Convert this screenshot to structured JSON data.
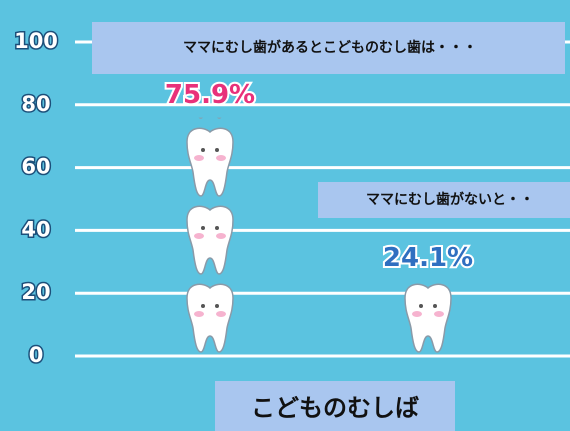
{
  "chart_data": {
    "type": "bar",
    "title": "こどものむしば",
    "categories": [
      "ママにむし歯があるとこどものむし歯は・・・",
      "ママにむし歯がないと・・"
    ],
    "values": [
      75.9,
      24.1
    ],
    "value_labels": [
      "75.9%",
      "24.1%"
    ],
    "value_label_colors": [
      "#e8317a",
      "#2f6fc0"
    ],
    "color": "#ffffff",
    "ylim": [
      0,
      100
    ],
    "yticks": [
      0,
      20,
      40,
      60,
      80,
      100
    ],
    "grid": true
  }
}
